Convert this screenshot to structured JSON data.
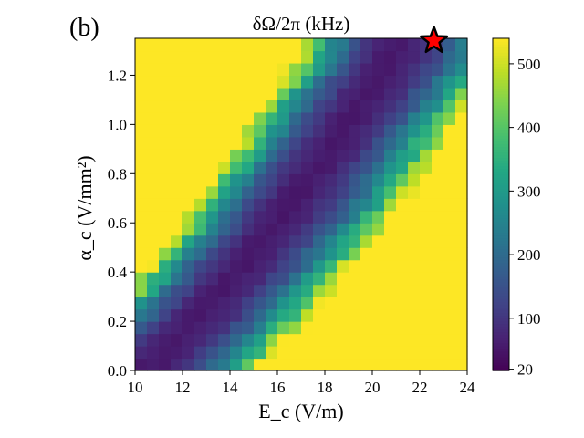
{
  "panel_label": "(b)",
  "chart_data": {
    "type": "heatmap",
    "title": "δΩ/2π (kHz)",
    "xlabel": "E_c (V/m)",
    "ylabel": "α_c (V/mm²)",
    "x_range": [
      10,
      24
    ],
    "y_range": [
      0.0,
      1.35
    ],
    "x_ticks": [
      "10",
      "12",
      "14",
      "16",
      "18",
      "20",
      "22",
      "24"
    ],
    "y_ticks": [
      "0.0",
      "0.2",
      "0.4",
      "0.6",
      "0.8",
      "1.0",
      "1.2"
    ],
    "colormap": "viridis",
    "colorbar": {
      "range": [
        18,
        540
      ],
      "ticks": [
        "20",
        "100",
        "200",
        "300",
        "400",
        "500"
      ]
    },
    "grid": {
      "nx": 28,
      "ny": 27
    },
    "minimum_valley": [
      [
        10.5,
        0.0
      ],
      [
        13.0,
        0.25
      ],
      [
        16.0,
        0.6
      ],
      [
        18.5,
        0.95
      ],
      [
        21.0,
        1.3
      ]
    ],
    "annotations": [
      {
        "type": "star",
        "x": 22.6,
        "y": 1.34,
        "color": "#ff0000"
      }
    ]
  }
}
